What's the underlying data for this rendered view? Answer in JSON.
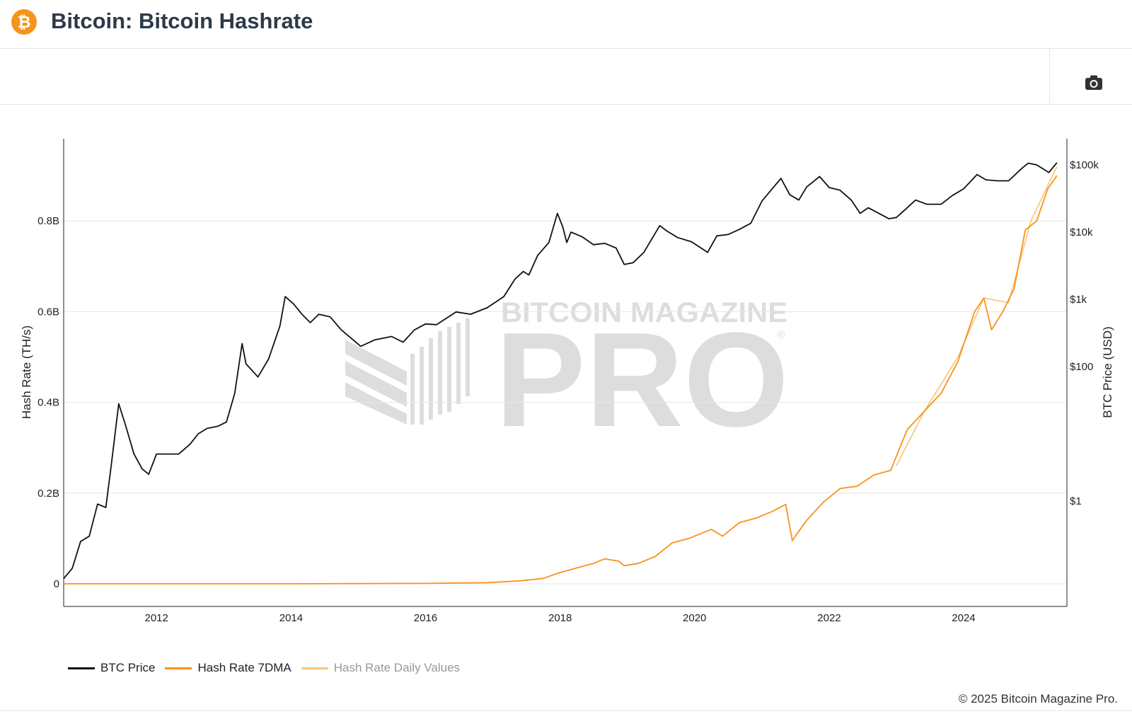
{
  "header": {
    "logo_glyph": "₿",
    "title": "Bitcoin: Bitcoin Hashrate"
  },
  "toolbar": {
    "camera_icon": "camera-icon"
  },
  "watermark": {
    "line1": "BITCOIN MAGAZINE",
    "line2": "PRO",
    "mark": "®"
  },
  "colors": {
    "btc_price": "#111111",
    "hashrate_7dma": "#f7931a",
    "hashrate_daily": "#f9c27a",
    "grid": "#e6e6e6",
    "brand": "#f7931a"
  },
  "legend": {
    "items": [
      {
        "label": "BTC Price"
      },
      {
        "label": "Hash Rate 7DMA"
      },
      {
        "label": "Hash Rate Daily Values"
      }
    ]
  },
  "footer": {
    "copyright": "© 2025 Bitcoin Magazine Pro."
  },
  "chart_data": {
    "type": "line",
    "title": "",
    "xlabel": "",
    "ylabel_left": "Hash Rate (TH/s)",
    "ylabel_right": "BTC Price (USD)",
    "x_ticks": [
      "2012",
      "2014",
      "2016",
      "2018",
      "2020",
      "2022",
      "2024"
    ],
    "xlim": [
      "2010-08-15",
      "2025-07-15"
    ],
    "y_left": {
      "scale": "linear",
      "range": [
        0,
        0.96
      ],
      "unit": "billion TH/s",
      "ticks": [
        0,
        0.2,
        0.4,
        0.6,
        0.8
      ],
      "tick_labels": [
        "0",
        "0.2B",
        "0.4B",
        "0.6B",
        "0.8B"
      ]
    },
    "y_right": {
      "scale": "log",
      "range": [
        0.01,
        300000
      ],
      "ticks": [
        1,
        100,
        1000,
        10000,
        100000
      ],
      "tick_labels": [
        "$1",
        "$100",
        "$1k",
        "$10k",
        "$100k"
      ]
    },
    "grid": true,
    "legend_position": "bottom-left",
    "series": [
      {
        "name": "BTC Price",
        "axis": "right",
        "x": [
          "2010-08-15",
          "2010-10-01",
          "2010-11-15",
          "2011-01-01",
          "2011-02-15",
          "2011-04-01",
          "2011-05-01",
          "2011-06-10",
          "2011-07-15",
          "2011-09-01",
          "2011-10-15",
          "2011-11-20",
          "2012-01-01",
          "2012-03-01",
          "2012-05-01",
          "2012-07-01",
          "2012-08-15",
          "2012-10-01",
          "2012-12-01",
          "2013-01-15",
          "2013-03-01",
          "2013-04-10",
          "2013-05-01",
          "2013-07-05",
          "2013-09-01",
          "2013-11-01",
          "2013-11-30",
          "2014-01-15",
          "2014-03-01",
          "2014-04-15",
          "2014-06-01",
          "2014-08-01",
          "2014-10-01",
          "2015-01-14",
          "2015-04-01",
          "2015-07-01",
          "2015-09-01",
          "2015-11-01",
          "2016-01-01",
          "2016-03-01",
          "2016-06-15",
          "2016-09-01",
          "2016-12-01",
          "2017-03-01",
          "2017-05-01",
          "2017-06-15",
          "2017-07-15",
          "2017-09-01",
          "2017-11-01",
          "2017-12-17",
          "2018-01-15",
          "2018-02-06",
          "2018-03-01",
          "2018-05-01",
          "2018-07-01",
          "2018-09-01",
          "2018-11-01",
          "2018-12-15",
          "2019-02-01",
          "2019-04-01",
          "2019-06-26",
          "2019-08-01",
          "2019-10-01",
          "2019-12-15",
          "2020-03-12",
          "2020-05-01",
          "2020-07-01",
          "2020-09-01",
          "2020-11-01",
          "2021-01-01",
          "2021-04-14",
          "2021-06-01",
          "2021-07-20",
          "2021-09-01",
          "2021-11-10",
          "2022-01-01",
          "2022-03-01",
          "2022-05-01",
          "2022-06-18",
          "2022-08-01",
          "2022-11-21",
          "2023-01-01",
          "2023-03-01",
          "2023-04-15",
          "2023-06-15",
          "2023-09-01",
          "2023-11-01",
          "2024-01-01",
          "2024-03-14",
          "2024-05-01",
          "2024-07-01",
          "2024-09-01",
          "2024-11-15",
          "2024-12-17",
          "2025-02-01",
          "2025-04-08",
          "2025-05-22"
        ],
        "y": [
          0.07,
          0.1,
          0.25,
          0.3,
          0.9,
          0.8,
          3.5,
          28,
          14,
          5,
          3,
          2.5,
          5,
          5,
          5,
          7,
          10,
          12,
          13,
          15,
          40,
          220,
          110,
          70,
          130,
          400,
          1100,
          850,
          600,
          450,
          600,
          550,
          350,
          200,
          250,
          280,
          230,
          350,
          430,
          420,
          650,
          600,
          750,
          1100,
          2000,
          2600,
          2300,
          4500,
          7000,
          19000,
          12000,
          7000,
          10000,
          8500,
          6500,
          6800,
          5800,
          3300,
          3500,
          5000,
          12500,
          10500,
          8300,
          7200,
          5000,
          8800,
          9200,
          11000,
          13500,
          29000,
          63000,
          36000,
          30000,
          47000,
          67000,
          46000,
          42000,
          30000,
          19000,
          23000,
          15800,
          16500,
          23000,
          30000,
          26000,
          26000,
          35000,
          44000,
          72000,
          60000,
          58000,
          58000,
          90000,
          106000,
          100000,
          77000,
          108000
        ]
      },
      {
        "name": "Hash Rate 7DMA",
        "axis": "left",
        "x": [
          "2010-08-15",
          "2014-01-01",
          "2016-01-01",
          "2016-12-01",
          "2017-06-01",
          "2017-10-01",
          "2018-01-01",
          "2018-04-01",
          "2018-07-01",
          "2018-09-01",
          "2018-11-15",
          "2018-12-15",
          "2019-03-01",
          "2019-06-01",
          "2019-09-01",
          "2019-12-01",
          "2020-04-01",
          "2020-06-01",
          "2020-09-01",
          "2020-12-01",
          "2021-03-01",
          "2021-05-10",
          "2021-06-15",
          "2021-07-01",
          "2021-09-01",
          "2021-12-01",
          "2022-03-01",
          "2022-06-01",
          "2022-09-01",
          "2022-12-01",
          "2023-03-01",
          "2023-06-01",
          "2023-09-01",
          "2023-12-01",
          "2024-03-01",
          "2024-04-20",
          "2024-06-01",
          "2024-08-01",
          "2024-10-01",
          "2024-12-01",
          "2025-02-01",
          "2025-04-01",
          "2025-05-22"
        ],
        "y": [
          0,
          1.25e-05,
          0.0009,
          0.0025,
          0.0065,
          0.012,
          0.025,
          0.035,
          0.045,
          0.055,
          0.05,
          0.04,
          0.045,
          0.06,
          0.09,
          0.1,
          0.12,
          0.105,
          0.135,
          0.145,
          0.16,
          0.175,
          0.095,
          0.105,
          0.14,
          0.18,
          0.21,
          0.215,
          0.24,
          0.25,
          0.34,
          0.38,
          0.42,
          0.49,
          0.6,
          0.63,
          0.56,
          0.6,
          0.65,
          0.78,
          0.8,
          0.87,
          0.9
        ]
      },
      {
        "name": "Hash Rate Daily Values",
        "axis": "left",
        "x": [
          "2023-01-01",
          "2023-06-01",
          "2023-12-01",
          "2024-04-20",
          "2024-09-01",
          "2025-01-01",
          "2025-05-22"
        ],
        "y": [
          0.26,
          0.38,
          0.5,
          0.63,
          0.62,
          0.8,
          0.92
        ]
      }
    ]
  }
}
